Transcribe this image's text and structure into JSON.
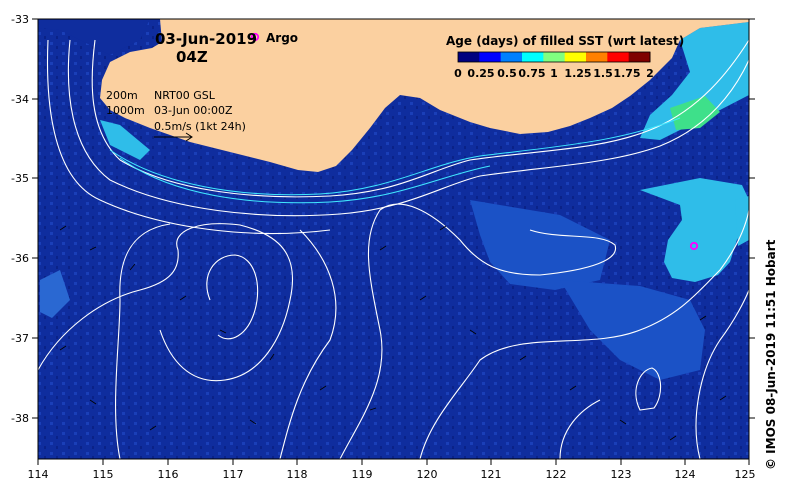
{
  "title": {
    "date": "03-Jun-2019",
    "hour": "04Z"
  },
  "legend": {
    "argo_label": "Argo",
    "colorbar_title": "Age (days) of filled SST (wrt latest)",
    "colorbar_ticks": [
      "0",
      "0.25",
      "0.5",
      "0.75",
      "1",
      "1.25",
      "1.5",
      "1.75",
      "2"
    ],
    "colorbar_colors": [
      "#00007f",
      "#0000ff",
      "#0080ff",
      "#00ffff",
      "#80ff80",
      "#ffff00",
      "#ff8000",
      "#ff0000",
      "#7f0000"
    ]
  },
  "annotations": {
    "isobath_200": "200m",
    "isobath_1000": "1000m",
    "product": "NRT00 GSL",
    "timestamp": "03-Jun 00:00Z",
    "velocity_scale": "0.5m/s (1kt 24h)"
  },
  "axes": {
    "longitude_ticks": [
      "114",
      "115",
      "116",
      "117",
      "118",
      "119",
      "120",
      "121",
      "122",
      "123",
      "124",
      "125"
    ],
    "latitude_ticks": [
      "-33",
      "-34",
      "-35",
      "-36",
      "-37",
      "-38"
    ]
  },
  "credit": "© IMOS 08-Jun-2019 11:51 Hobart",
  "colors": {
    "ocean": "#0f2d9e",
    "land": "#fbd0a0",
    "warm_patch": "#27c4f0",
    "argo_marker": "#ff00ff"
  },
  "argo_floats": [
    {
      "lon": 117.3,
      "lat": -33.23
    },
    {
      "lon": 124.15,
      "lat": -35.85
    }
  ]
}
